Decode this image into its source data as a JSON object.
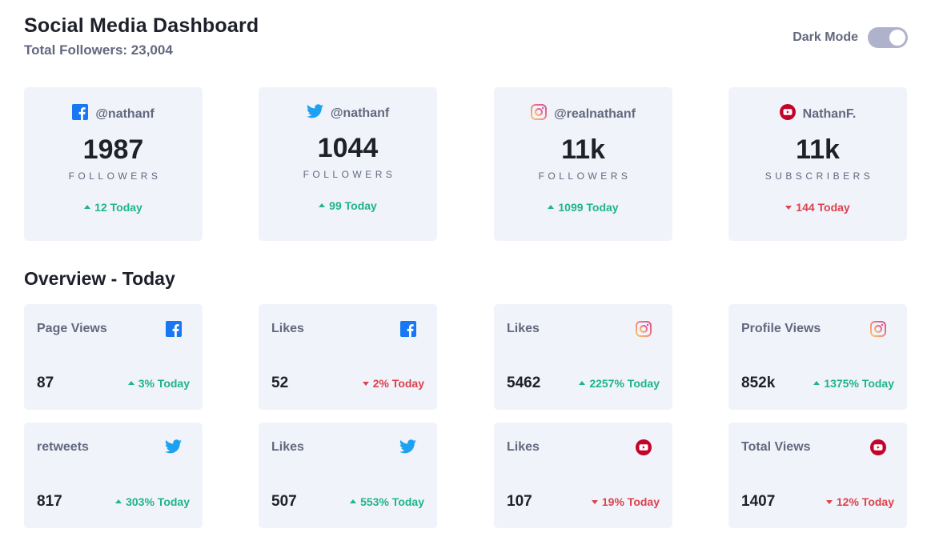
{
  "header": {
    "title": "Social Media Dashboard",
    "subtitle": "Total Followers: 23,004"
  },
  "toggle": {
    "label": "Dark Mode"
  },
  "colors": {
    "up": "#1eb589",
    "down": "#dc414c",
    "facebook": "#1877f2",
    "twitter": "#1da1f2",
    "youtube": "#c4032b"
  },
  "cards": [
    {
      "platform": "facebook",
      "icon": "facebook-icon",
      "handle": "@nathanf",
      "count": "1987",
      "metric": "FOLLOWERS",
      "change": "12 Today",
      "trend": "up"
    },
    {
      "platform": "twitter",
      "icon": "twitter-icon",
      "handle": "@nathanf",
      "count": "1044",
      "metric": "FOLLOWERS",
      "change": "99 Today",
      "trend": "up"
    },
    {
      "platform": "instagram",
      "icon": "instagram-icon",
      "handle": "@realnathanf",
      "count": "11k",
      "metric": "FOLLOWERS",
      "change": "1099 Today",
      "trend": "up"
    },
    {
      "platform": "youtube",
      "icon": "youtube-icon",
      "handle": "NathanF.",
      "count": "11k",
      "metric": "SUBSCRIBERS",
      "change": "144 Today",
      "trend": "down"
    }
  ],
  "overview": {
    "title": "Overview - Today",
    "items": [
      {
        "label": "Page Views",
        "icon": "facebook-icon",
        "value": "87",
        "change": "3% Today",
        "trend": "up"
      },
      {
        "label": "Likes",
        "icon": "facebook-icon",
        "value": "52",
        "change": "2% Today",
        "trend": "down"
      },
      {
        "label": "Likes",
        "icon": "instagram-icon",
        "value": "5462",
        "change": "2257% Today",
        "trend": "up"
      },
      {
        "label": "Profile Views",
        "icon": "instagram-icon",
        "value": "852k",
        "change": "1375% Today",
        "trend": "up"
      },
      {
        "label": "retweets",
        "icon": "twitter-icon",
        "value": "817",
        "change": "303% Today",
        "trend": "up"
      },
      {
        "label": "Likes",
        "icon": "twitter-icon",
        "value": "507",
        "change": "553% Today",
        "trend": "up"
      },
      {
        "label": "Likes",
        "icon": "youtube-icon",
        "value": "107",
        "change": "19% Today",
        "trend": "down"
      },
      {
        "label": "Total Views",
        "icon": "youtube-icon",
        "value": "1407",
        "change": "12% Today",
        "trend": "down"
      }
    ]
  }
}
